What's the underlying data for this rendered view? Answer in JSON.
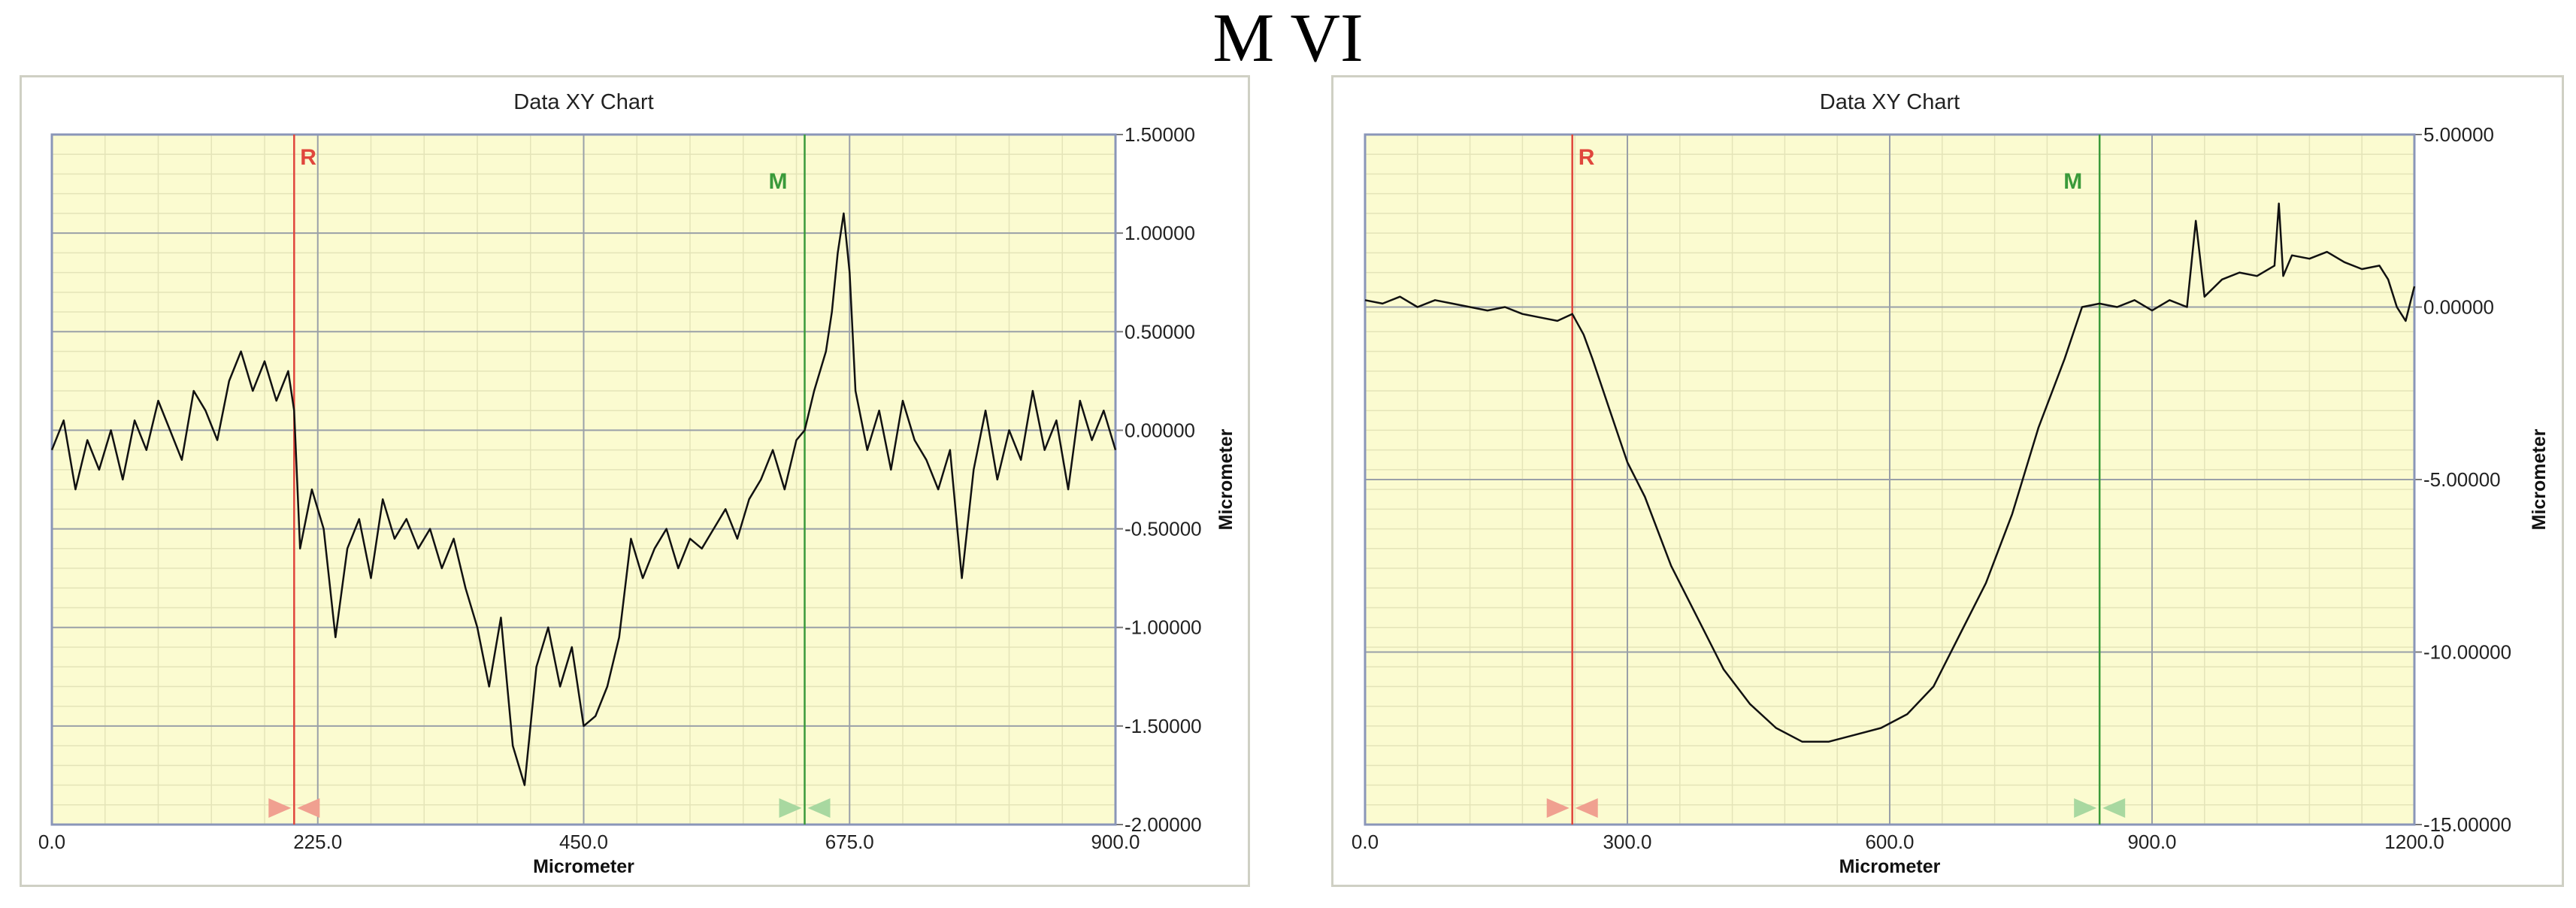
{
  "page": {
    "title": "M VI"
  },
  "chart_data": [
    {
      "type": "line",
      "title": "Data XY Chart",
      "xlabel": "Micrometer",
      "ylabel": "Micrometer",
      "xlim": [
        0,
        900
      ],
      "ylim": [
        -2.0,
        1.5
      ],
      "x_ticks": [
        0,
        225,
        450,
        675,
        900
      ],
      "x_tick_labels": [
        "0.0",
        "225.0",
        "450.0",
        "675.0",
        "900.0"
      ],
      "y_ticks": [
        1.5,
        1.0,
        0.5,
        0.0,
        -0.5,
        -1.0,
        -1.5,
        -2.0
      ],
      "y_tick_labels": [
        "1.50000",
        "1.00000",
        "0.50000",
        "0.00000",
        "-0.50000",
        "-1.00000",
        "-1.50000",
        "-2.00000"
      ],
      "y_axis_position": "right",
      "grid": true,
      "background": "#fbfbd0",
      "markers": [
        {
          "label": "R",
          "x": 205,
          "color": "#e0463c"
        },
        {
          "label": "M",
          "x": 637,
          "color": "#3a9a3a"
        }
      ],
      "series": [
        {
          "x": [
            0,
            10,
            20,
            30,
            40,
            50,
            60,
            70,
            80,
            90,
            100,
            110,
            120,
            130,
            140,
            150,
            160,
            170,
            180,
            190,
            200,
            205,
            210,
            220,
            230,
            240,
            250,
            260,
            270,
            280,
            290,
            300,
            310,
            320,
            330,
            340,
            350,
            360,
            370,
            380,
            390,
            400,
            410,
            420,
            430,
            440,
            450,
            460,
            470,
            480,
            490,
            500,
            510,
            520,
            530,
            540,
            550,
            560,
            570,
            580,
            590,
            600,
            610,
            620,
            630,
            637,
            645,
            655,
            660,
            665,
            670,
            675,
            680,
            690,
            700,
            710,
            720,
            730,
            740,
            750,
            760,
            770,
            780,
            790,
            800,
            810,
            820,
            830,
            840,
            850,
            860,
            870,
            880,
            890,
            900
          ],
          "y": [
            -0.1,
            0.05,
            -0.3,
            -0.05,
            -0.2,
            0.0,
            -0.25,
            0.05,
            -0.1,
            0.15,
            0.0,
            -0.15,
            0.2,
            0.1,
            -0.05,
            0.25,
            0.4,
            0.2,
            0.35,
            0.15,
            0.3,
            0.1,
            -0.6,
            -0.3,
            -0.5,
            -1.05,
            -0.6,
            -0.45,
            -0.75,
            -0.35,
            -0.55,
            -0.45,
            -0.6,
            -0.5,
            -0.7,
            -0.55,
            -0.8,
            -1.0,
            -1.3,
            -0.95,
            -1.6,
            -1.8,
            -1.2,
            -1.0,
            -1.3,
            -1.1,
            -1.5,
            -1.45,
            -1.3,
            -1.05,
            -0.55,
            -0.75,
            -0.6,
            -0.5,
            -0.7,
            -0.55,
            -0.6,
            -0.5,
            -0.4,
            -0.55,
            -0.35,
            -0.25,
            -0.1,
            -0.3,
            -0.05,
            0.0,
            0.2,
            0.4,
            0.6,
            0.9,
            1.1,
            0.8,
            0.2,
            -0.1,
            0.1,
            -0.2,
            0.15,
            -0.05,
            -0.15,
            -0.3,
            -0.1,
            -0.75,
            -0.2,
            0.1,
            -0.25,
            0.0,
            -0.15,
            0.2,
            -0.1,
            0.05,
            -0.3,
            0.15,
            -0.05,
            0.1,
            -0.1
          ]
        }
      ]
    },
    {
      "type": "line",
      "title": "Data XY Chart",
      "xlabel": "Micrometer",
      "ylabel": "Micrometer",
      "xlim": [
        0,
        1200
      ],
      "ylim": [
        -15.0,
        5.0
      ],
      "x_ticks": [
        0,
        300,
        600,
        900,
        1200
      ],
      "x_tick_labels": [
        "0.0",
        "300.0",
        "600.0",
        "900.0",
        "1200.0"
      ],
      "y_ticks": [
        5.0,
        0.0,
        -5.0,
        -10.0,
        -15.0
      ],
      "y_tick_labels": [
        "5.00000",
        "0.00000",
        "-5.00000",
        "-10.00000",
        "-15.00000"
      ],
      "y_axis_position": "right",
      "grid": true,
      "background": "#fbfbd0",
      "markers": [
        {
          "label": "R",
          "x": 237,
          "color": "#e0463c"
        },
        {
          "label": "M",
          "x": 840,
          "color": "#3a9a3a"
        }
      ],
      "series": [
        {
          "x": [
            0,
            20,
            40,
            60,
            80,
            100,
            120,
            140,
            160,
            180,
            200,
            220,
            237,
            250,
            260,
            280,
            300,
            320,
            350,
            380,
            410,
            440,
            470,
            500,
            530,
            560,
            590,
            620,
            650,
            680,
            710,
            740,
            770,
            800,
            820,
            840,
            860,
            880,
            900,
            920,
            940,
            950,
            960,
            980,
            1000,
            1020,
            1040,
            1045,
            1050,
            1060,
            1080,
            1100,
            1120,
            1140,
            1160,
            1170,
            1180,
            1190,
            1200
          ],
          "y": [
            0.2,
            0.1,
            0.3,
            0.0,
            0.2,
            0.1,
            0.0,
            -0.1,
            0.0,
            -0.2,
            -0.3,
            -0.4,
            -0.2,
            -0.8,
            -1.5,
            -3.0,
            -4.5,
            -5.5,
            -7.5,
            -9.0,
            -10.5,
            -11.5,
            -12.2,
            -12.6,
            -12.6,
            -12.4,
            -12.2,
            -11.8,
            -11.0,
            -9.5,
            -8.0,
            -6.0,
            -3.5,
            -1.5,
            0.0,
            0.1,
            0.0,
            0.2,
            -0.1,
            0.2,
            0.0,
            2.5,
            0.3,
            0.8,
            1.0,
            0.9,
            1.2,
            3.0,
            0.9,
            1.5,
            1.4,
            1.6,
            1.3,
            1.1,
            1.2,
            0.8,
            0.0,
            -0.4,
            0.6
          ]
        }
      ]
    }
  ]
}
